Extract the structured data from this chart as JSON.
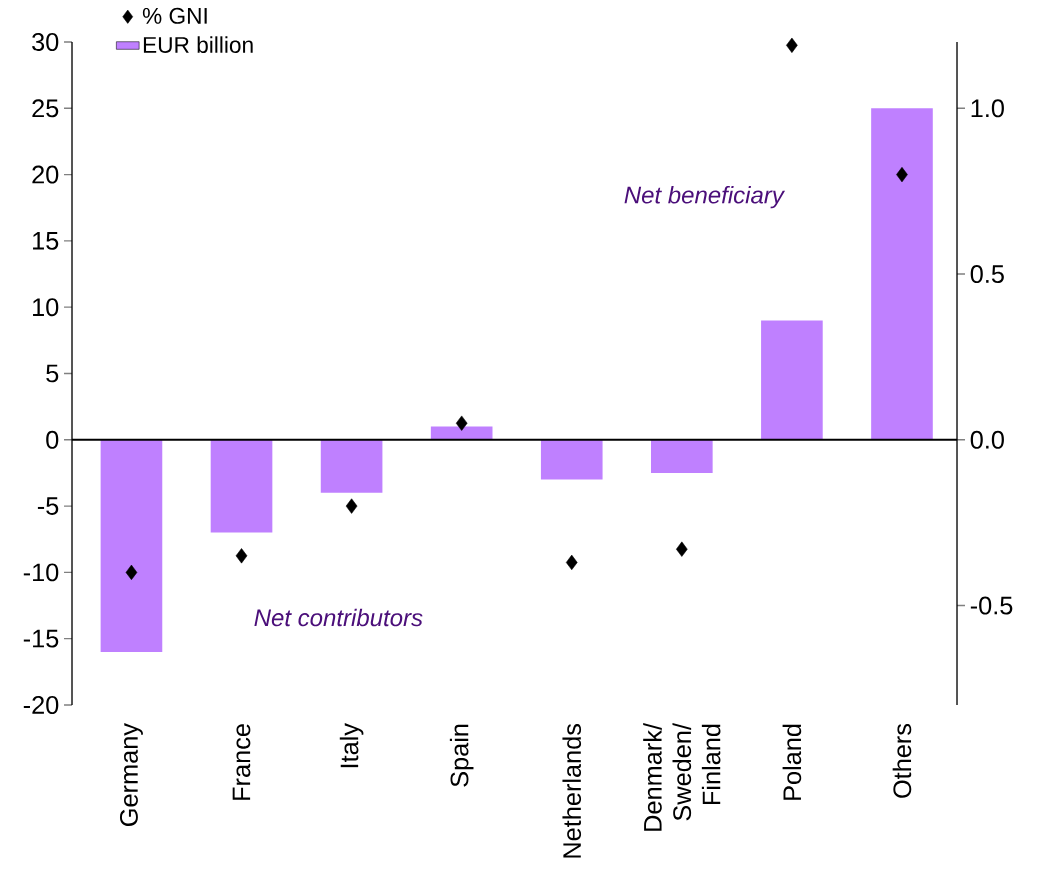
{
  "chart_data": {
    "type": "bar",
    "categories": [
      "Germany",
      "France",
      "Italy",
      "Spain",
      "Netherlands",
      "Denmark/ Sweden/ Finland",
      "Poland",
      "Others"
    ],
    "series": [
      {
        "name": "% GNI",
        "type": "scatter",
        "axis": "y2",
        "color": "#000000",
        "values": [
          -0.4,
          -0.35,
          -0.2,
          0.05,
          -0.37,
          -0.33,
          1.19,
          0.8
        ]
      },
      {
        "name": "EUR billion",
        "color": "#bf80ff",
        "values": [
          -16,
          -7,
          -4,
          1,
          -3,
          -2.5,
          9,
          25
        ]
      }
    ],
    "marker": "diamond",
    "ylim": [
      -20,
      30
    ],
    "yticks": [
      -20,
      -15,
      -10,
      -5,
      0,
      5,
      10,
      15,
      20,
      25,
      30
    ],
    "y2lim": [
      -0.8,
      1.2
    ],
    "y2ticks": [
      {
        "value": -0.5,
        "label": "-0.5"
      },
      {
        "value": 0,
        "label": "0.0"
      },
      {
        "value": 0.5,
        "label": "0.5"
      },
      {
        "value": 1,
        "label": "1.0"
      }
    ],
    "legend": "top left",
    "annotations": [
      "Net beneficiary",
      "Net contributors"
    ]
  }
}
